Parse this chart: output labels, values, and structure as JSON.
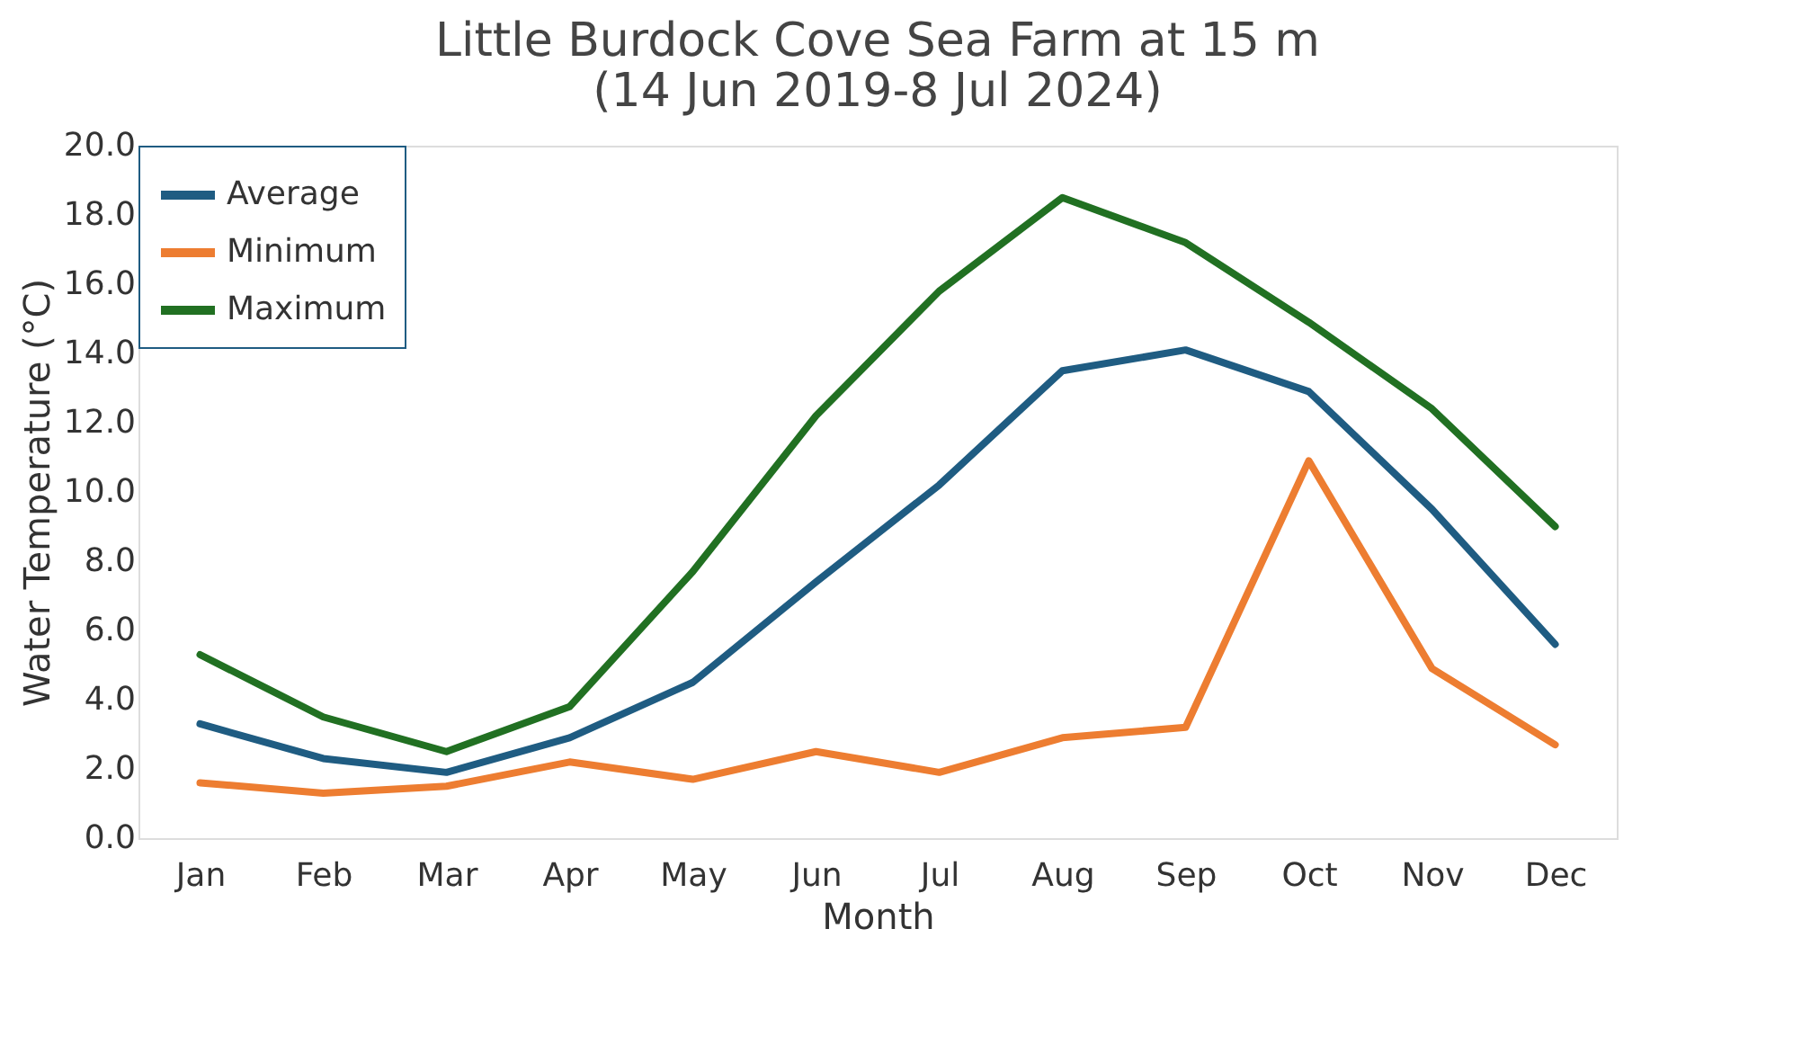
{
  "chart_data": {
    "type": "line",
    "title": "Little Burdock Cove Sea Farm at 15 m\n(14 Jun 2019-8 Jul 2024)",
    "xlabel": "Month",
    "ylabel": "Water Temperature (°C)",
    "categories": [
      "Jan",
      "Feb",
      "Mar",
      "Apr",
      "May",
      "Jun",
      "Jul",
      "Aug",
      "Sep",
      "Oct",
      "Nov",
      "Dec"
    ],
    "series": [
      {
        "name": "Average",
        "color": "#1f5c82",
        "values": [
          3.3,
          2.3,
          1.9,
          2.9,
          4.5,
          7.4,
          10.2,
          13.5,
          14.1,
          12.9,
          9.5,
          5.6
        ]
      },
      {
        "name": "Minimum",
        "color": "#ed7d31",
        "values": [
          1.6,
          1.3,
          1.5,
          2.2,
          1.7,
          2.5,
          1.9,
          2.9,
          3.2,
          10.9,
          4.9,
          2.7
        ]
      },
      {
        "name": "Maximum",
        "color": "#217022",
        "values": [
          5.3,
          3.5,
          2.5,
          3.8,
          7.7,
          12.2,
          15.8,
          18.5,
          17.2,
          14.9,
          12.4,
          9.0
        ]
      }
    ],
    "ylim": [
      0,
      20
    ],
    "yticks": [
      {
        "value": 0,
        "label": "0.0"
      },
      {
        "value": 2,
        "label": "2.0"
      },
      {
        "value": 4,
        "label": "4.0"
      },
      {
        "value": 6,
        "label": "6.0"
      },
      {
        "value": 8,
        "label": "8.0"
      },
      {
        "value": 10,
        "label": "10.0"
      },
      {
        "value": 12,
        "label": "12.0"
      },
      {
        "value": 14,
        "label": "14.0"
      },
      {
        "value": 16,
        "label": "16.0"
      },
      {
        "value": 18,
        "label": "18.0"
      },
      {
        "value": 20,
        "label": "20.0"
      }
    ],
    "grid": false,
    "legend": "top left",
    "marker": "none",
    "line_style": "solid"
  }
}
